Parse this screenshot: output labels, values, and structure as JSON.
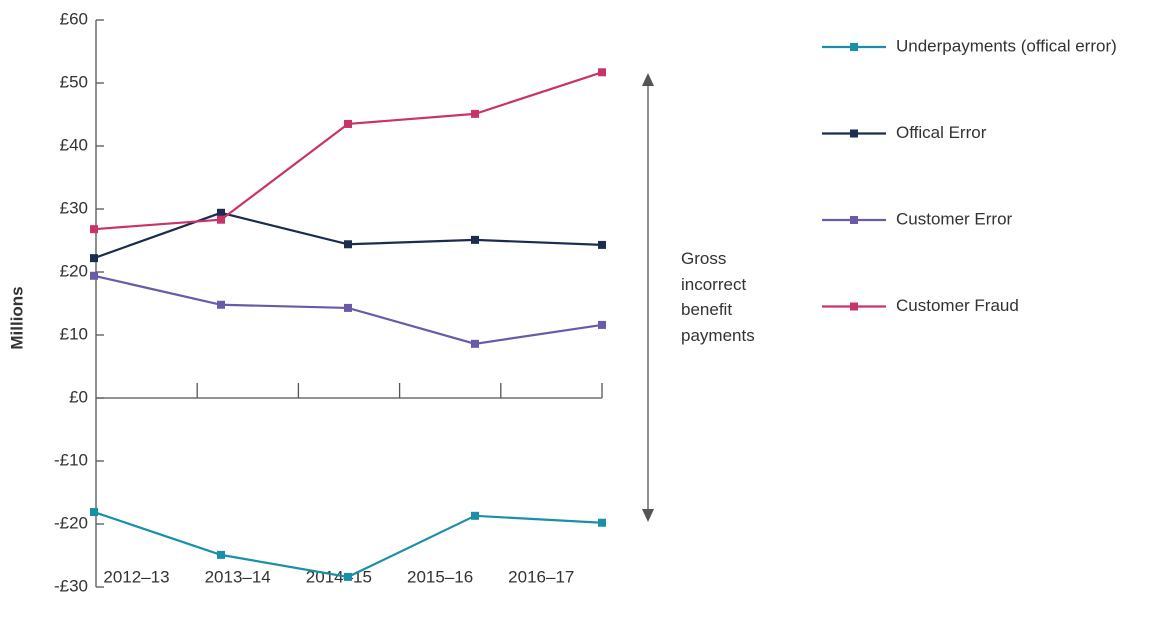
{
  "chart_data": {
    "type": "line",
    "y_label": "Millions",
    "annotation": "Gross incorrect benefit payments",
    "categories": [
      "2012–13",
      "2013–14",
      "2014–15",
      "2015–16",
      "2016–17"
    ],
    "series": [
      {
        "name": "Underpayments (offical error)",
        "color": "#1a8fa8",
        "values": [
          -18.1,
          -24.9,
          -28.4,
          -18.7,
          -19.8
        ]
      },
      {
        "name": "Offical Error",
        "color": "#1b2c4f",
        "values": [
          22.2,
          29.4,
          24.4,
          25.1,
          24.3
        ]
      },
      {
        "name": "Customer Error",
        "color": "#6a5aa8",
        "values": [
          19.4,
          14.8,
          14.3,
          8.6,
          11.6
        ]
      },
      {
        "name": "Customer Fraud",
        "color": "#c8336a",
        "values": [
          26.8,
          28.3,
          43.5,
          45.1,
          51.7
        ]
      }
    ],
    "ylim": [
      -30,
      60
    ],
    "yticks": [
      {
        "value": -30,
        "label": "-£30"
      },
      {
        "value": -20,
        "label": "-£20"
      },
      {
        "value": -10,
        "label": "-£10"
      },
      {
        "value": 0,
        "label": "£0"
      },
      {
        "value": 10,
        "label": "£10"
      },
      {
        "value": 20,
        "label": "£20"
      },
      {
        "value": 30,
        "label": "£30"
      },
      {
        "value": 40,
        "label": "£40"
      },
      {
        "value": 50,
        "label": "£50"
      },
      {
        "value": 60,
        "label": "£60"
      }
    ],
    "legend": "right"
  }
}
